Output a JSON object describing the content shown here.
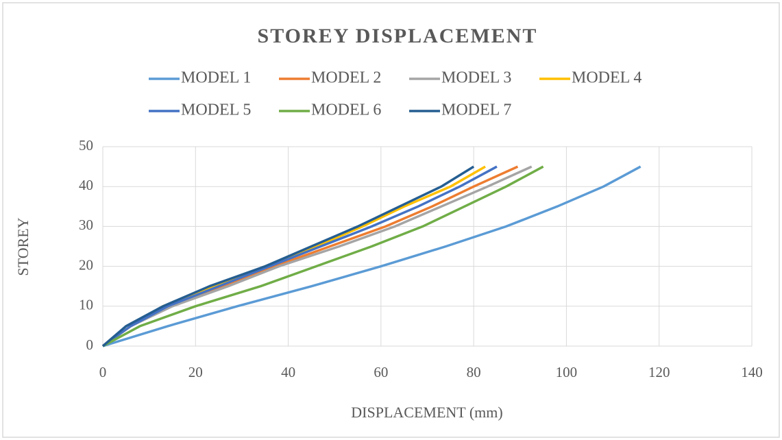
{
  "chart_data": {
    "type": "line",
    "title": "STOREY DISPLACEMENT",
    "x_label": "DISPLACEMENT (mm)",
    "y_label": "STOREY",
    "xlim": [
      0,
      140
    ],
    "xticks": [
      0,
      20,
      40,
      60,
      80,
      100,
      120,
      140
    ],
    "ylim": [
      0,
      50
    ],
    "yticks": [
      0,
      10,
      20,
      30,
      40,
      50
    ],
    "grid": true,
    "legend": "top",
    "series": [
      {
        "name": "MODEL 1",
        "color": "#5b9bd5",
        "x": [
          0,
          14,
          29,
          45,
          60,
          74,
          87,
          98,
          108,
          116
        ],
        "values": [
          0,
          5,
          10,
          15,
          20,
          25,
          30,
          35,
          40,
          45
        ]
      },
      {
        "name": "MODEL 2",
        "color": "#ed7d31",
        "x": [
          0,
          6,
          14,
          26,
          37,
          49,
          61,
          71,
          80,
          89.5
        ],
        "values": [
          0,
          5,
          10,
          15,
          20,
          25,
          30,
          35,
          40,
          45
        ]
      },
      {
        "name": "MODEL 3",
        "color": "#a5a5a5",
        "x": [
          0,
          6,
          15,
          27,
          38,
          51,
          63,
          73,
          83,
          92.5
        ],
        "values": [
          0,
          5,
          10,
          15,
          20,
          25,
          30,
          35,
          40,
          45
        ]
      },
      {
        "name": "MODEL 4",
        "color": "#ffc000",
        "x": [
          0,
          6,
          13,
          24,
          35,
          46,
          56,
          65,
          75,
          82.5
        ],
        "values": [
          0,
          5,
          10,
          15,
          20,
          25,
          30,
          35,
          40,
          45
        ]
      },
      {
        "name": "MODEL 5",
        "color": "#4472c4",
        "x": [
          0,
          6,
          14,
          25,
          36,
          47,
          58,
          68,
          77,
          85
        ],
        "values": [
          0,
          5,
          10,
          15,
          20,
          25,
          30,
          35,
          40,
          45
        ]
      },
      {
        "name": "MODEL 6",
        "color": "#70ad47",
        "x": [
          0,
          8,
          20,
          34,
          46,
          58,
          69,
          78,
          87,
          95
        ],
        "values": [
          0,
          5,
          10,
          15,
          20,
          25,
          30,
          35,
          40,
          45
        ]
      },
      {
        "name": "MODEL 7",
        "color": "#255e91",
        "x": [
          0,
          5,
          13,
          23,
          35,
          45,
          55,
          64,
          73,
          80
        ],
        "values": [
          0,
          5,
          10,
          15,
          20,
          25,
          30,
          35,
          40,
          45
        ]
      }
    ]
  }
}
